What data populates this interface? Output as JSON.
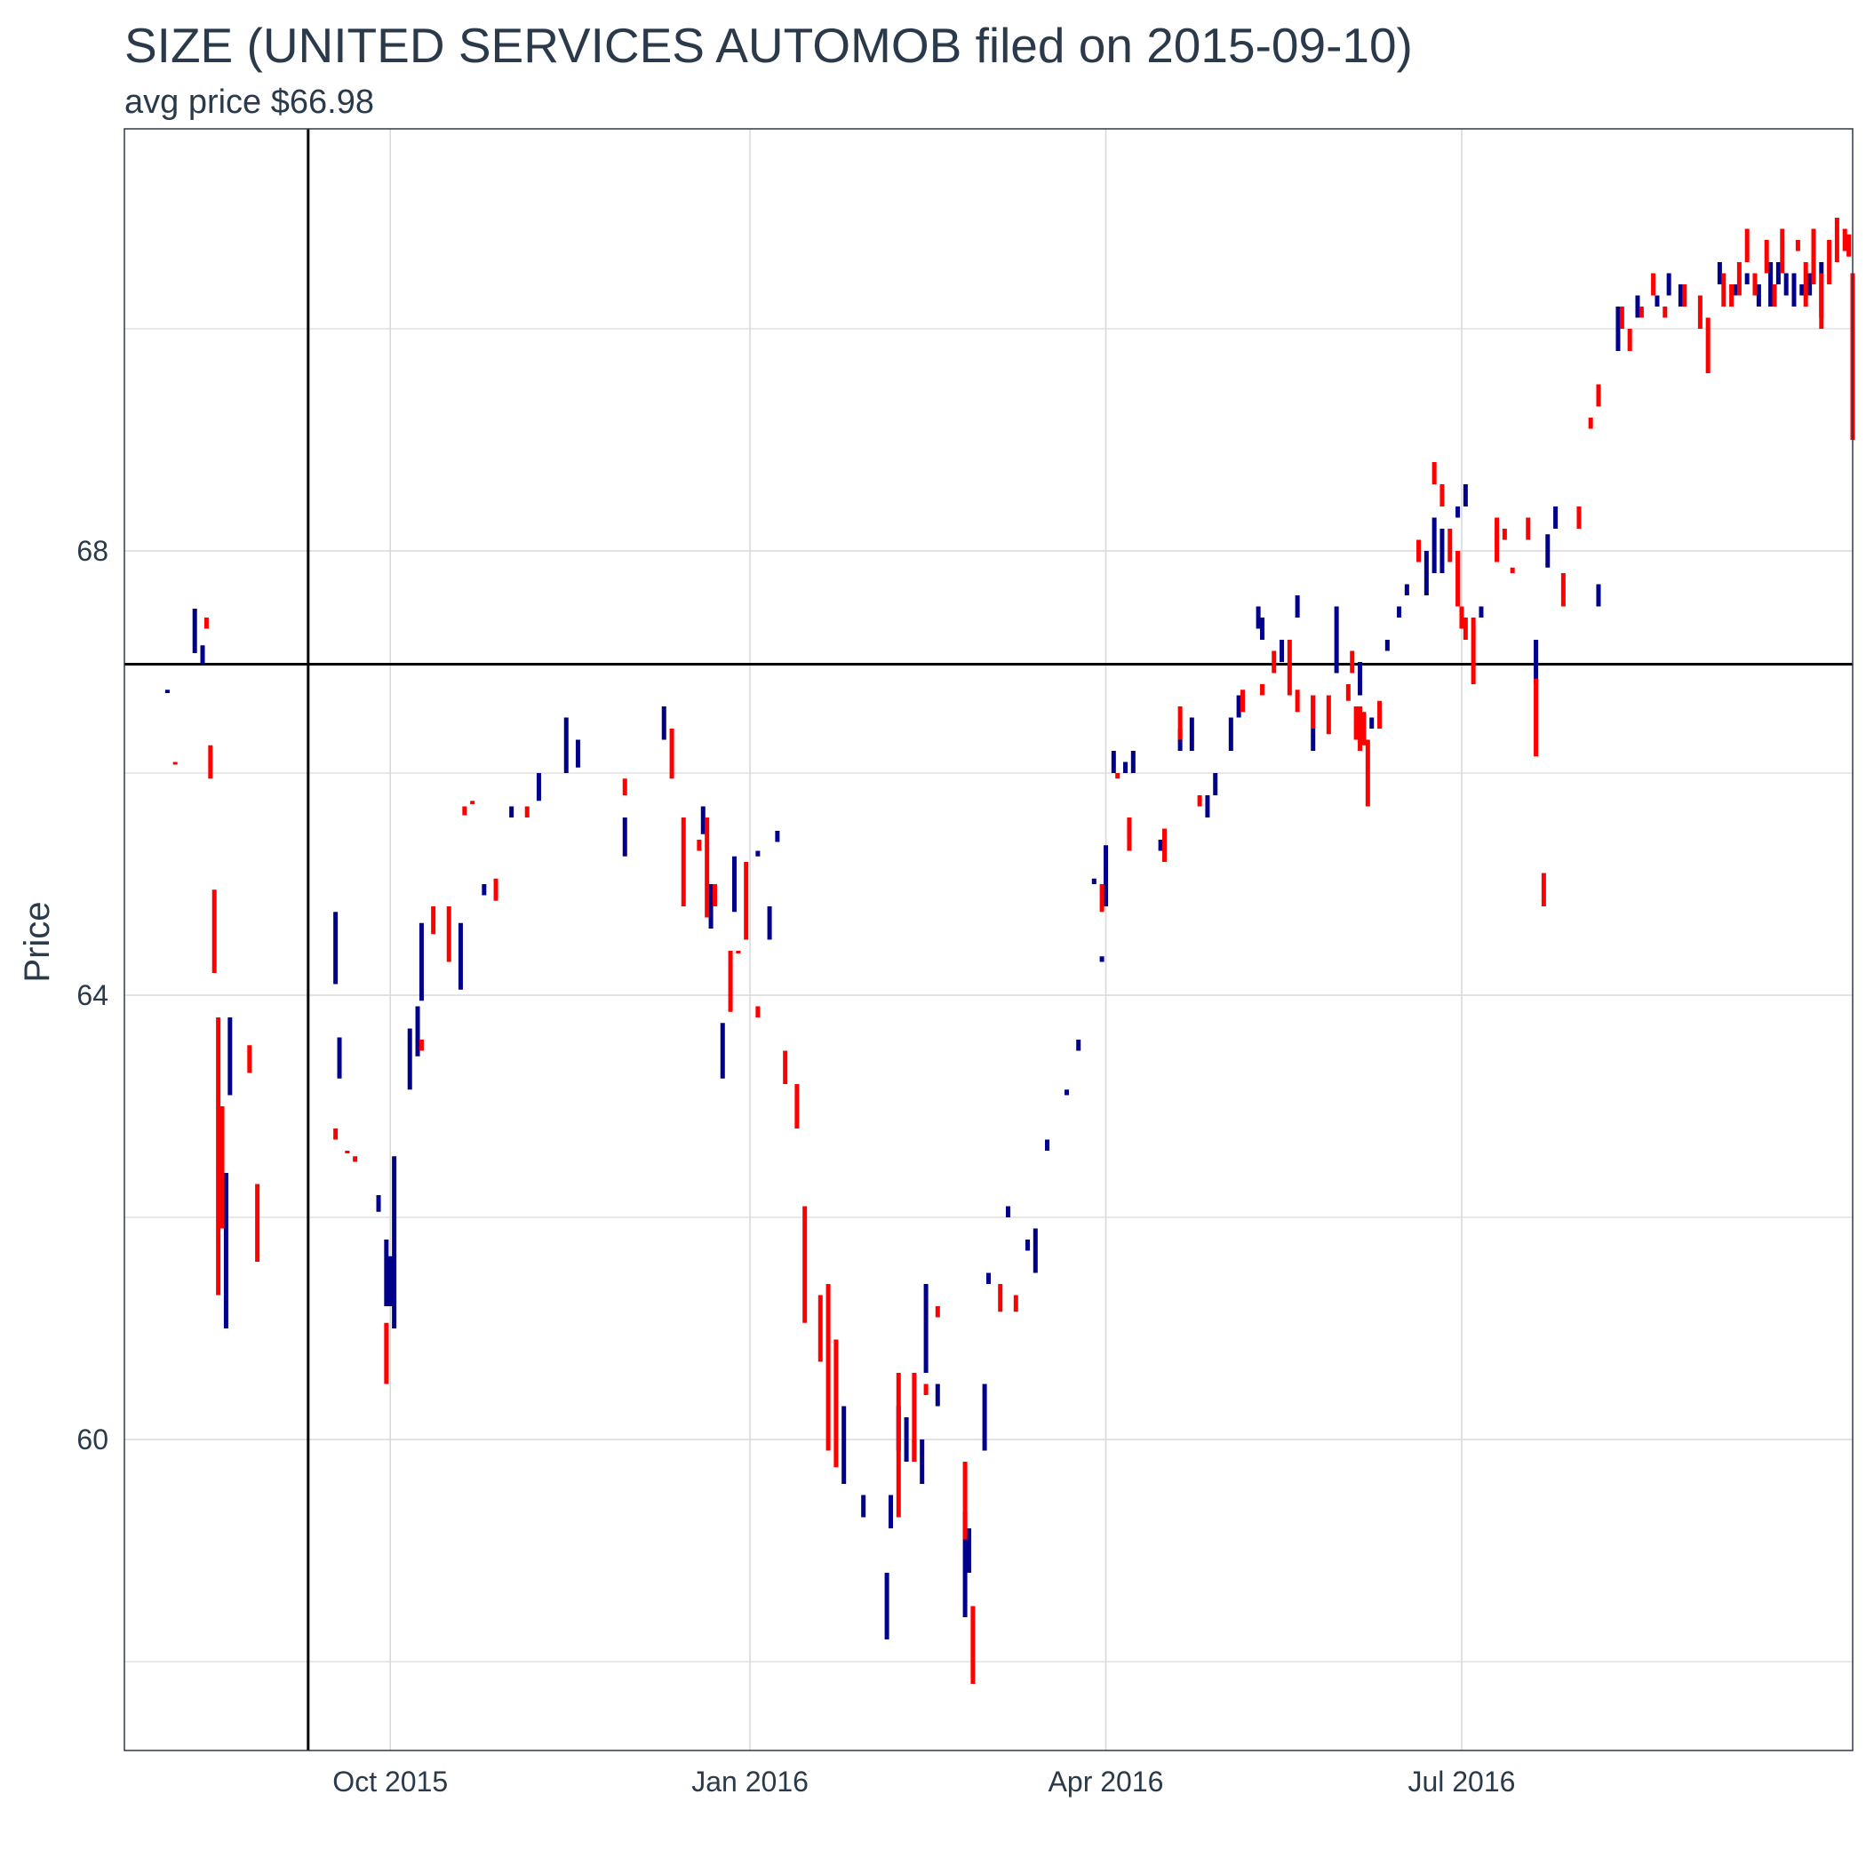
{
  "chart_data": {
    "type": "bar",
    "title": "SIZE (UNITED SERVICES AUTOMOB filed on 2015-09-10)",
    "subtitle": "avg price $66.98",
    "xlabel": "",
    "ylabel": "Price",
    "x_range": [
      "2015-07-25",
      "2016-10-09"
    ],
    "ylim": [
      57.2,
      71.8
    ],
    "x_ticks": [
      {
        "date": "2015-10-01",
        "label": "Oct 2015"
      },
      {
        "date": "2016-01-01",
        "label": "Jan 2016"
      },
      {
        "date": "2016-04-01",
        "label": "Apr 2016"
      },
      {
        "date": "2016-07-01",
        "label": "Jul 2016"
      }
    ],
    "y_ticks": [
      60,
      64,
      68
    ],
    "y_minor_gridlines": [
      58,
      62,
      66,
      70
    ],
    "grid": true,
    "reference_lines": {
      "vline_date": "2015-09-10",
      "hline_value": 66.98
    },
    "colors": {
      "up": "#00008B",
      "down": "#FF0000",
      "reference": "#000000",
      "grid": "#d9d9d9",
      "text": "#2b3a4a"
    },
    "series": [
      {
        "dir": "up",
        "bars": [
          [
            "2015-08-05",
            66.75,
            66.72
          ],
          [
            "2015-08-12",
            67.08,
            67.48
          ],
          [
            "2015-08-14",
            66.98,
            67.15
          ],
          [
            "2015-08-20",
            61.0,
            62.4
          ],
          [
            "2015-08-21",
            63.1,
            63.8
          ],
          [
            "2015-09-17",
            64.1,
            64.75
          ],
          [
            "2015-09-18",
            63.25,
            63.62
          ],
          [
            "2015-09-28",
            62.05,
            62.2
          ],
          [
            "2015-09-30",
            61.2,
            61.8
          ],
          [
            "2015-10-01",
            61.2,
            61.65
          ],
          [
            "2015-10-02",
            61.0,
            62.55
          ],
          [
            "2015-10-06",
            63.15,
            63.7
          ],
          [
            "2015-10-08",
            63.45,
            63.9
          ],
          [
            "2015-10-09",
            63.95,
            64.65
          ],
          [
            "2015-10-19",
            64.05,
            64.65
          ],
          [
            "2015-10-25",
            64.9,
            65.0
          ],
          [
            "2015-11-01",
            65.6,
            65.7
          ],
          [
            "2015-11-08",
            65.75,
            66.0
          ],
          [
            "2015-11-15",
            66.0,
            66.5
          ],
          [
            "2015-11-18",
            66.05,
            66.3
          ],
          [
            "2015-11-30",
            65.25,
            65.6
          ],
          [
            "2015-12-10",
            66.3,
            66.6
          ],
          [
            "2015-12-20",
            65.45,
            65.7
          ],
          [
            "2015-12-22",
            64.6,
            65.0
          ],
          [
            "2015-12-25",
            63.25,
            63.75
          ],
          [
            "2015-12-28",
            64.75,
            65.25
          ],
          [
            "2016-01-03",
            65.25,
            65.3
          ],
          [
            "2016-01-06",
            64.5,
            64.8
          ],
          [
            "2016-01-08",
            65.38,
            65.48
          ],
          [
            "2016-01-25",
            59.6,
            60.3
          ],
          [
            "2016-01-30",
            59.3,
            59.5
          ],
          [
            "2016-02-05",
            58.2,
            58.8
          ],
          [
            "2016-02-06",
            59.2,
            59.5
          ],
          [
            "2016-02-08",
            59.9,
            60.3
          ],
          [
            "2016-02-10",
            59.8,
            60.2
          ],
          [
            "2016-02-12",
            59.8,
            60.0
          ],
          [
            "2016-02-14",
            59.6,
            60.0
          ],
          [
            "2016-02-15",
            60.6,
            61.4
          ],
          [
            "2016-02-18",
            60.3,
            60.5
          ],
          [
            "2016-02-25",
            58.4,
            59.35
          ],
          [
            "2016-02-26",
            58.8,
            59.2
          ],
          [
            "2016-03-01",
            59.9,
            60.5
          ],
          [
            "2016-03-02",
            61.4,
            61.5
          ],
          [
            "2016-03-07",
            62.0,
            62.1
          ],
          [
            "2016-03-12",
            61.7,
            61.8
          ],
          [
            "2016-03-14",
            61.5,
            61.9
          ],
          [
            "2016-03-17",
            62.6,
            62.7
          ],
          [
            "2016-03-22",
            63.1,
            63.15
          ],
          [
            "2016-03-25",
            63.5,
            63.6
          ],
          [
            "2016-03-31",
            64.3,
            64.35
          ],
          [
            "2016-03-29",
            65.0,
            65.05
          ],
          [
            "2016-04-01",
            64.8,
            65.35
          ],
          [
            "2016-04-03",
            66.0,
            66.2
          ],
          [
            "2016-04-06",
            66.0,
            66.1
          ],
          [
            "2016-04-08",
            66.0,
            66.2
          ],
          [
            "2016-04-15",
            65.3,
            65.4
          ],
          [
            "2016-04-20",
            66.2,
            66.4
          ],
          [
            "2016-04-23",
            66.2,
            66.5
          ],
          [
            "2016-04-27",
            65.6,
            65.8
          ],
          [
            "2016-04-29",
            65.8,
            66.0
          ],
          [
            "2016-05-03",
            66.2,
            66.5
          ],
          [
            "2016-05-05",
            66.5,
            66.7
          ],
          [
            "2016-05-10",
            67.3,
            67.5
          ],
          [
            "2016-05-11",
            67.2,
            67.4
          ],
          [
            "2016-05-16",
            67.0,
            67.2
          ],
          [
            "2016-05-20",
            67.4,
            67.6
          ],
          [
            "2016-05-24",
            66.2,
            66.7
          ],
          [
            "2016-05-30",
            66.9,
            67.5
          ],
          [
            "2016-06-05",
            66.7,
            67.0
          ],
          [
            "2016-06-08",
            66.4,
            66.5
          ],
          [
            "2016-06-12",
            67.1,
            67.2
          ],
          [
            "2016-06-15",
            67.4,
            67.5
          ],
          [
            "2016-06-17",
            67.6,
            67.7
          ],
          [
            "2016-06-22",
            67.6,
            68.0
          ],
          [
            "2016-06-24",
            67.8,
            68.3
          ],
          [
            "2016-06-26",
            67.8,
            68.2
          ],
          [
            "2016-06-30",
            68.3,
            68.4
          ],
          [
            "2016-07-02",
            68.4,
            68.6
          ],
          [
            "2016-07-06",
            67.4,
            67.5
          ],
          [
            "2016-07-20",
            66.8,
            67.2
          ],
          [
            "2016-07-23",
            67.85,
            68.15
          ],
          [
            "2016-07-25",
            68.2,
            68.4
          ],
          [
            "2016-08-05",
            67.5,
            67.7
          ],
          [
            "2016-08-10",
            69.8,
            70.2
          ],
          [
            "2016-08-15",
            70.1,
            70.3
          ],
          [
            "2016-08-20",
            70.2,
            70.3
          ],
          [
            "2016-08-23",
            70.3,
            70.5
          ],
          [
            "2016-08-26",
            70.2,
            70.4
          ],
          [
            "2016-09-05",
            70.4,
            70.6
          ],
          [
            "2016-09-09",
            70.3,
            70.4
          ],
          [
            "2016-09-12",
            70.4,
            70.5
          ],
          [
            "2016-09-15",
            70.2,
            70.4
          ],
          [
            "2016-09-18",
            70.2,
            70.6
          ],
          [
            "2016-09-20",
            70.4,
            70.6
          ],
          [
            "2016-09-22",
            70.3,
            70.5
          ],
          [
            "2016-09-24",
            70.2,
            70.5
          ],
          [
            "2016-09-26",
            70.3,
            70.4
          ],
          [
            "2016-09-28",
            70.3,
            70.5
          ],
          [
            "2016-10-01",
            70.1,
            70.6
          ]
        ]
      },
      {
        "dir": "down",
        "bars": [
          [
            "2015-08-07",
            66.1,
            66.08
          ],
          [
            "2015-08-15",
            67.4,
            67.3
          ],
          [
            "2015-08-16",
            66.25,
            65.95
          ],
          [
            "2015-08-17",
            64.95,
            64.2
          ],
          [
            "2015-08-18",
            63.8,
            61.3
          ],
          [
            "2015-08-19",
            63.0,
            61.9
          ],
          [
            "2015-08-26",
            63.55,
            63.3
          ],
          [
            "2015-08-28",
            62.3,
            61.6
          ],
          [
            "2015-09-17",
            62.8,
            62.7
          ],
          [
            "2015-09-20",
            62.6,
            62.58
          ],
          [
            "2015-09-22",
            62.55,
            62.5
          ],
          [
            "2015-09-30",
            61.05,
            60.5
          ],
          [
            "2015-10-09",
            63.6,
            63.5
          ],
          [
            "2015-10-12",
            64.8,
            64.55
          ],
          [
            "2015-10-16",
            64.8,
            64.3
          ],
          [
            "2015-10-20",
            65.7,
            65.62
          ],
          [
            "2015-10-22",
            65.75,
            65.72
          ],
          [
            "2015-10-28",
            65.05,
            64.85
          ],
          [
            "2015-11-05",
            65.7,
            65.6
          ],
          [
            "2015-11-30",
            65.95,
            65.8
          ],
          [
            "2015-12-12",
            66.4,
            65.95
          ],
          [
            "2015-12-15",
            65.6,
            64.8
          ],
          [
            "2015-12-19",
            65.4,
            65.3
          ],
          [
            "2015-12-21",
            65.6,
            64.7
          ],
          [
            "2015-12-23",
            65.0,
            64.8
          ],
          [
            "2015-12-27",
            64.4,
            63.85
          ],
          [
            "2015-12-29",
            64.4,
            64.4
          ],
          [
            "2015-12-31",
            65.2,
            64.5
          ],
          [
            "2016-01-03",
            63.9,
            63.8
          ],
          [
            "2016-01-10",
            63.5,
            63.2
          ],
          [
            "2016-01-13",
            63.2,
            62.8
          ],
          [
            "2016-01-15",
            62.1,
            61.05
          ],
          [
            "2016-01-19",
            61.3,
            60.7
          ],
          [
            "2016-01-21",
            61.4,
            59.9
          ],
          [
            "2016-01-23",
            60.9,
            59.75
          ],
          [
            "2016-02-08",
            60.6,
            59.3
          ],
          [
            "2016-02-12",
            60.6,
            59.8
          ],
          [
            "2016-02-15",
            60.5,
            60.4
          ],
          [
            "2016-02-18",
            61.2,
            61.1
          ],
          [
            "2016-02-25",
            59.8,
            59.1
          ],
          [
            "2016-02-27",
            58.5,
            57.8
          ],
          [
            "2016-03-05",
            61.4,
            61.15
          ],
          [
            "2016-03-09",
            61.3,
            61.15
          ],
          [
            "2016-03-31",
            65.0,
            64.75
          ],
          [
            "2016-04-04",
            66.0,
            65.95
          ],
          [
            "2016-04-07",
            65.6,
            65.3
          ],
          [
            "2016-04-16",
            65.5,
            65.2
          ],
          [
            "2016-04-20",
            66.6,
            66.3
          ],
          [
            "2016-04-25",
            65.8,
            65.7
          ],
          [
            "2016-05-06",
            66.75,
            66.55
          ],
          [
            "2016-05-11",
            66.8,
            66.7
          ],
          [
            "2016-05-14",
            67.1,
            66.9
          ],
          [
            "2016-05-18",
            67.2,
            66.7
          ],
          [
            "2016-05-20",
            66.75,
            66.55
          ],
          [
            "2016-05-24",
            66.7,
            66.4
          ],
          [
            "2016-05-28",
            66.7,
            66.35
          ],
          [
            "2016-06-02",
            66.8,
            66.65
          ],
          [
            "2016-06-03",
            67.1,
            66.9
          ],
          [
            "2016-06-04",
            66.6,
            66.3
          ],
          [
            "2016-06-05",
            66.6,
            66.2
          ],
          [
            "2016-06-06",
            66.55,
            66.25
          ],
          [
            "2016-06-07",
            66.3,
            65.7
          ],
          [
            "2016-06-10",
            66.65,
            66.4
          ],
          [
            "2016-06-20",
            68.1,
            67.9
          ],
          [
            "2016-06-24",
            68.8,
            68.6
          ],
          [
            "2016-06-26",
            68.6,
            68.4
          ],
          [
            "2016-06-28",
            68.2,
            67.9
          ],
          [
            "2016-06-30",
            68.0,
            67.5
          ],
          [
            "2016-07-01",
            67.5,
            67.3
          ],
          [
            "2016-07-02",
            67.4,
            67.2
          ],
          [
            "2016-07-04",
            67.4,
            66.8
          ],
          [
            "2016-07-10",
            68.3,
            67.9
          ],
          [
            "2016-07-12",
            68.2,
            68.1
          ],
          [
            "2016-07-14",
            67.85,
            67.8
          ],
          [
            "2016-07-18",
            68.3,
            68.1
          ],
          [
            "2016-07-20",
            66.85,
            66.15
          ],
          [
            "2016-07-22",
            65.1,
            64.8
          ],
          [
            "2016-07-27",
            67.8,
            67.5
          ],
          [
            "2016-07-31",
            68.4,
            68.2
          ],
          [
            "2016-08-03",
            69.2,
            69.1
          ],
          [
            "2016-08-05",
            69.5,
            69.3
          ],
          [
            "2016-08-11",
            70.2,
            70.0
          ],
          [
            "2016-08-13",
            70.0,
            69.8
          ],
          [
            "2016-08-16",
            70.2,
            70.1
          ],
          [
            "2016-08-19",
            70.5,
            70.3
          ],
          [
            "2016-08-22",
            70.2,
            70.1
          ],
          [
            "2016-08-27",
            70.4,
            70.2
          ],
          [
            "2016-08-31",
            70.3,
            70.0
          ],
          [
            "2016-09-02",
            70.1,
            69.6
          ],
          [
            "2016-09-06",
            70.5,
            70.2
          ],
          [
            "2016-09-08",
            70.4,
            70.2
          ],
          [
            "2016-09-10",
            70.6,
            70.3
          ],
          [
            "2016-09-12",
            70.9,
            70.6
          ],
          [
            "2016-09-14",
            70.5,
            70.3
          ],
          [
            "2016-09-17",
            70.8,
            70.5
          ],
          [
            "2016-09-19",
            70.4,
            70.2
          ],
          [
            "2016-09-21",
            70.9,
            70.5
          ],
          [
            "2016-09-25",
            70.8,
            70.7
          ],
          [
            "2016-09-27",
            70.6,
            70.2
          ],
          [
            "2016-09-29",
            70.9,
            70.4
          ],
          [
            "2016-10-01",
            70.5,
            70.0
          ],
          [
            "2016-10-03",
            70.8,
            70.4
          ],
          [
            "2016-10-05",
            71.0,
            70.6
          ],
          [
            "2016-10-07",
            70.9,
            70.7
          ],
          [
            "2016-10-08",
            70.85,
            70.65
          ],
          [
            "2016-10-09",
            70.5,
            69.0
          ]
        ]
      }
    ]
  }
}
